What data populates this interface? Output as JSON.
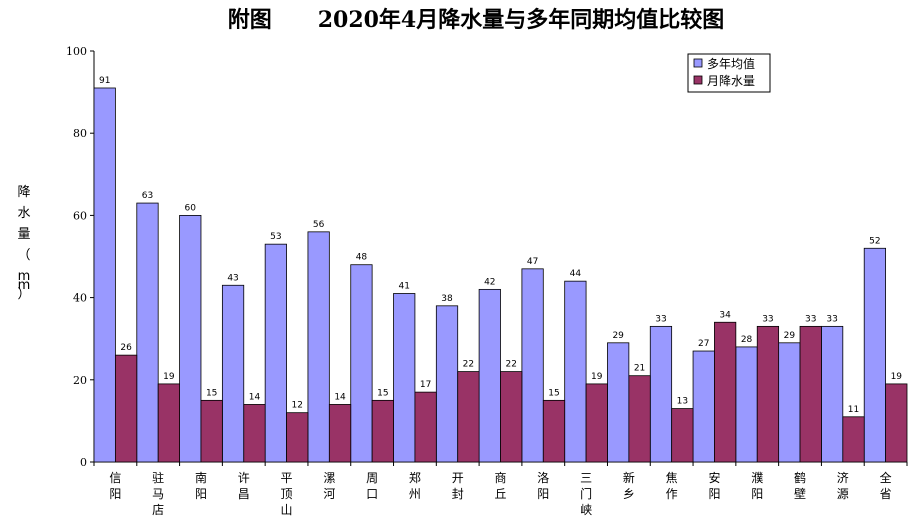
{
  "chart_data": {
    "type": "bar",
    "title": "附图      2020年4月降水量与多年同期均值比较图",
    "ylabel": "降水量（mm）",
    "ylim": [
      0,
      100
    ],
    "yticks": [
      0,
      20,
      40,
      60,
      80,
      100
    ],
    "grid": false,
    "legend_position": "top-right",
    "categories": [
      "信阳",
      "驻马店",
      "南阳",
      "许昌",
      "平顶山",
      "漯河",
      "周口",
      "郑州",
      "开封",
      "商丘",
      "洛阳",
      "三门峡",
      "新乡",
      "焦作",
      "安阳",
      "濮阳",
      "鹤壁",
      "济源",
      "全省"
    ],
    "series": [
      {
        "name": "多年均值",
        "color": "#9999ff",
        "values": [
          91,
          63,
          60,
          43,
          53,
          56,
          48,
          41,
          38,
          42,
          47,
          44,
          29,
          33,
          27,
          28,
          29,
          33,
          52
        ]
      },
      {
        "name": "月降水量",
        "color": "#993366",
        "values": [
          26,
          19,
          15,
          14,
          12,
          14,
          15,
          17,
          22,
          22,
          15,
          19,
          21,
          13,
          34,
          33,
          33,
          11,
          19
        ]
      }
    ]
  }
}
